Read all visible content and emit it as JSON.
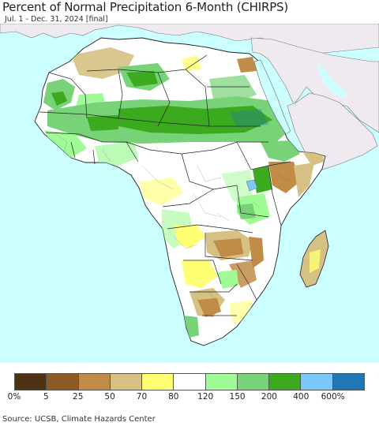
{
  "title": "Percent of Normal Precipitation 6-Month (CHIRPS)",
  "subtitle": "Jul. 1 - Dec. 31, 2024 [final]",
  "source": "Source: UCSB, Climate Hazards Center",
  "colors": {
    "ocean": "#ccffff",
    "no_data_land": "#efeaf0",
    "border": "#222222"
  },
  "legend": {
    "colors": [
      "#4d3314",
      "#8c5a24",
      "#c08c48",
      "#d6c083",
      "#ffff73",
      "#ffffff",
      "#a0fa96",
      "#78d278",
      "#3caa1e",
      "#7dc8fa",
      "#1e78b4"
    ],
    "tick_labels": [
      "0%",
      "5",
      "25",
      "50",
      "70",
      "80",
      "120",
      "150",
      "200",
      "400",
      "600%"
    ]
  }
}
